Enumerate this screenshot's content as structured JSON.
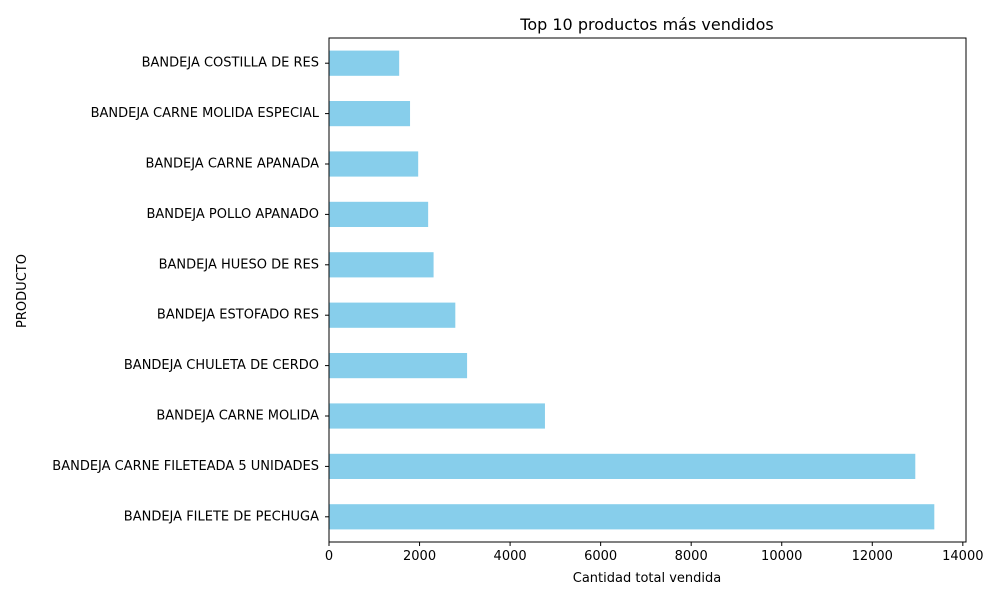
{
  "chart_data": {
    "type": "bar",
    "orientation": "horizontal",
    "title": "Top 10 productos más vendidos",
    "xlabel": "Cantidad total vendida",
    "ylabel": "PRODUCTO",
    "categories": [
      "BANDEJA FILETE DE PECHUGA",
      "BANDEJA CARNE FILETEADA 5 UNIDADES",
      "BANDEJA CARNE MOLIDA",
      "BANDEJA CHULETA DE CERDO",
      "BANDEJA ESTOFADO RES",
      "BANDEJA HUESO DE RES",
      "BANDEJA POLLO APANADO",
      "BANDEJA CARNE APANADA",
      "BANDEJA CARNE MOLIDA ESPECIAL",
      "BANDEJA COSTILLA DE RES"
    ],
    "values": [
      13370,
      12950,
      4770,
      3050,
      2790,
      2310,
      2190,
      1970,
      1790,
      1550
    ],
    "xlim": [
      0,
      14070
    ],
    "xticks": [
      0,
      2000,
      4000,
      6000,
      8000,
      10000,
      12000,
      14000
    ],
    "bar_color": "#87ceeb",
    "grid": false,
    "legend": false
  }
}
